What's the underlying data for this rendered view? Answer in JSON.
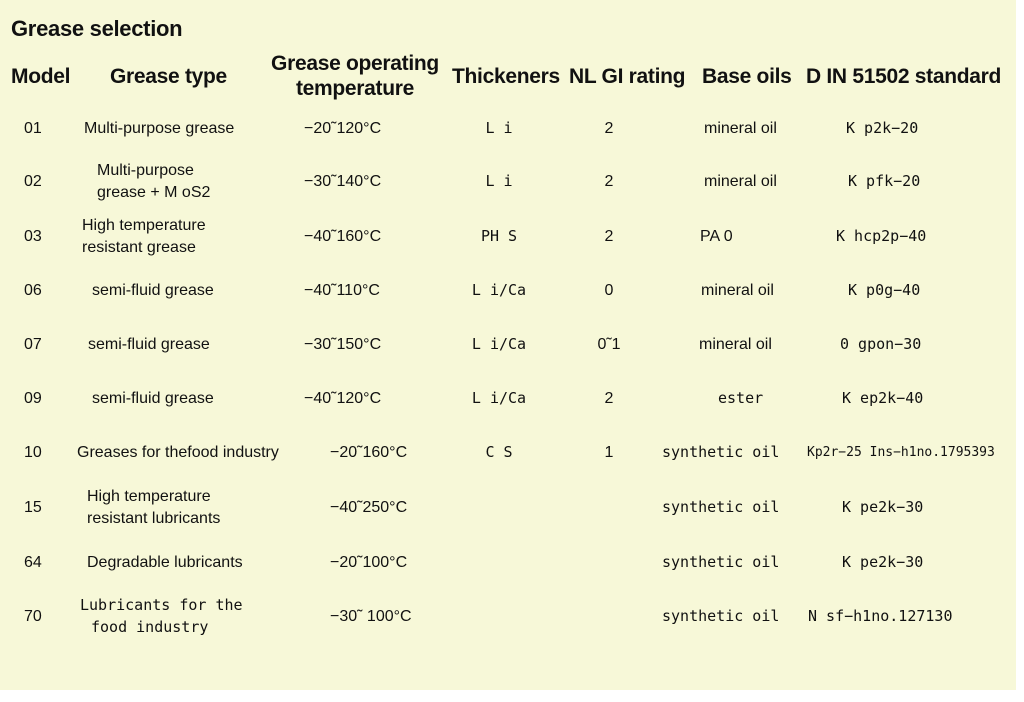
{
  "title": "Grease selection",
  "headers": {
    "model": "Model",
    "grease_type": "Grease type",
    "operating_temp_line1": "Grease operating",
    "operating_temp_line2": "temperature",
    "thickeners": "Thickeners",
    "nlgi": "NL GI rating",
    "base_oils": "Base oils",
    "din": "D IN 51502 standard"
  },
  "rows": [
    {
      "model": "01",
      "type": [
        "Multi-purpose grease"
      ],
      "temp": "−20˜120°C",
      "thickener": "L i",
      "nlgi": "2",
      "base": "mineral oil",
      "din": "K p2k−20"
    },
    {
      "model": "02",
      "type": [
        "Multi-purpose",
        "grease + M oS2"
      ],
      "temp": "−30˜140°C",
      "thickener": "L i",
      "nlgi": "2",
      "base": "mineral oil",
      "din": "K pfk−20"
    },
    {
      "model": "03",
      "type": [
        "High temperature",
        "resistant grease"
      ],
      "temp": "−40˜160°C",
      "thickener": "PH S",
      "nlgi": "2",
      "base": "PA 0",
      "din": "K hcp2p−40"
    },
    {
      "model": "06",
      "type": [
        "semi-fluid grease"
      ],
      "temp": "−40˜110°C",
      "thickener": "L i/Ca",
      "nlgi": "0",
      "base": "mineral oil",
      "din": "K p0g−40"
    },
    {
      "model": "07",
      "type": [
        "semi-fluid grease"
      ],
      "temp": "−30˜150°C",
      "thickener": "L i/Ca",
      "nlgi": "0˜1",
      "base": "mineral oil",
      "din": "0 gpon−30"
    },
    {
      "model": "09",
      "type": [
        "semi-fluid grease"
      ],
      "temp": "−40˜120°C",
      "thickener": "L i/Ca",
      "nlgi": "2",
      "base": "ester",
      "din": "K ep2k−40"
    },
    {
      "model": "10",
      "type": [
        "Greases for thefood industry"
      ],
      "temp": "−20˜160°C",
      "thickener": "C S",
      "nlgi": "1",
      "base": "synthetic oil",
      "din": "Kp2r−25 Ins−h1no.1795393"
    },
    {
      "model": "15",
      "type": [
        "High temperature",
        "resistant lubricants"
      ],
      "temp": "−40˜250°C",
      "thickener": "",
      "nlgi": "",
      "base": "synthetic oil",
      "din": "K pe2k−30"
    },
    {
      "model": "64",
      "type": [
        "Degradable lubricants"
      ],
      "temp": "−20˜100°C",
      "thickener": "",
      "nlgi": "",
      "base": "synthetic oil",
      "din": "K pe2k−30"
    },
    {
      "model": "70",
      "type": [
        "Lubricants for the",
        "food industry"
      ],
      "temp": "−30˜ 100°C",
      "thickener": "",
      "nlgi": "",
      "base": "synthetic oil",
      "din": "N sf−h1no.127130"
    }
  ]
}
